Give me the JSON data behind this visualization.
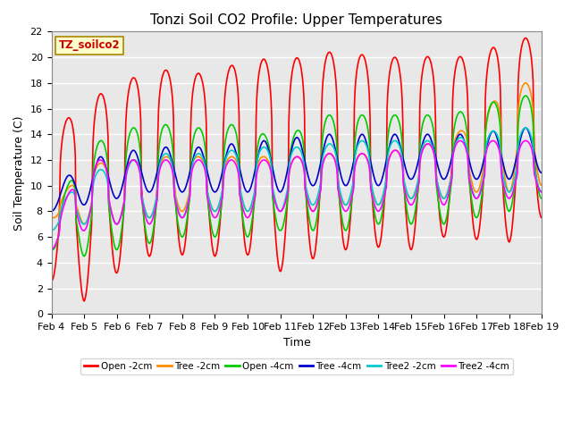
{
  "title": "Tonzi Soil CO2 Profile: Upper Temperatures",
  "xlabel": "Time",
  "ylabel": "Soil Temperature (C)",
  "ylim": [
    0,
    22
  ],
  "xtick_labels": [
    "Feb 4",
    "Feb 5",
    "Feb 6",
    "Feb 7",
    "Feb 8",
    "Feb 9",
    "Feb 10",
    "Feb 11",
    "Feb 12",
    "Feb 13",
    "Feb 14",
    "Feb 15",
    "Feb 16",
    "Feb 17",
    "Feb 18",
    "Feb 19"
  ],
  "series": [
    {
      "label": "Open -2cm",
      "color": "#FF0000",
      "lw": 1.2
    },
    {
      "label": "Tree -2cm",
      "color": "#FF8C00",
      "lw": 1.2
    },
    {
      "label": "Open -4cm",
      "color": "#00CC00",
      "lw": 1.2
    },
    {
      "label": "Tree -4cm",
      "color": "#0000CC",
      "lw": 1.2
    },
    {
      "label": "Tree2 -2cm",
      "color": "#00CCCC",
      "lw": 1.2
    },
    {
      "label": "Tree2 -4cm",
      "color": "#FF00FF",
      "lw": 1.2
    }
  ],
  "legend_box_label": "TZ_soilco2",
  "background_color": "#E8E8E8",
  "grid_color": "#FFFFFF",
  "title_fontsize": 11,
  "axis_fontsize": 9,
  "tick_fontsize": 8
}
